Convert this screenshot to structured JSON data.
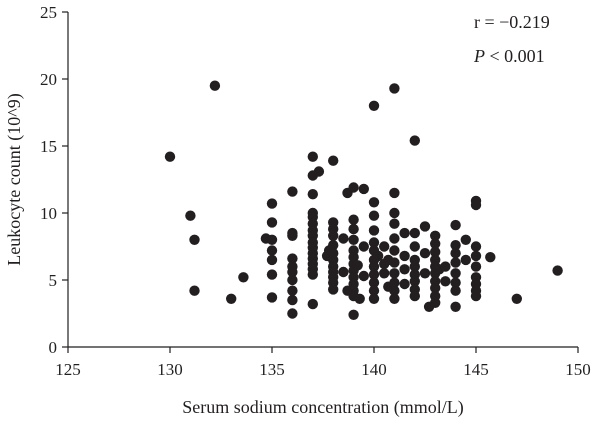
{
  "chart_data": {
    "type": "scatter",
    "title": "",
    "xlabel": "Serum sodium concentration (mmol/L)",
    "ylabel": "Leukocyte count (10^9)",
    "xlim": [
      125,
      150
    ],
    "ylim": [
      0,
      25
    ],
    "xticks": [
      "125",
      "130",
      "135",
      "140",
      "145",
      "150"
    ],
    "yticks": [
      "0",
      "5",
      "10",
      "15",
      "20",
      "25"
    ],
    "annotations": {
      "r": "r = −0.219",
      "p_italic": "P",
      "p_rest": " < 0.001"
    },
    "grid": false,
    "point_color": "#231f20",
    "points": [
      [
        130,
        14.2
      ],
      [
        131,
        9.8
      ],
      [
        131.2,
        8
      ],
      [
        131.2,
        4.2
      ],
      [
        132.2,
        19.5
      ],
      [
        133,
        3.6
      ],
      [
        133.6,
        5.2
      ],
      [
        134.7,
        8.1
      ],
      [
        135,
        10.7
      ],
      [
        135,
        9.3
      ],
      [
        135,
        8
      ],
      [
        135,
        7.2
      ],
      [
        135,
        6.5
      ],
      [
        135,
        5.4
      ],
      [
        135,
        3.7
      ],
      [
        136,
        11.6
      ],
      [
        136,
        8.5
      ],
      [
        136,
        8.3
      ],
      [
        136,
        6.6
      ],
      [
        136,
        6
      ],
      [
        136,
        5.6
      ],
      [
        136,
        5
      ],
      [
        136,
        4.2
      ],
      [
        136,
        3.5
      ],
      [
        136,
        2.5
      ],
      [
        137,
        14.2
      ],
      [
        137,
        12.8
      ],
      [
        137,
        11.4
      ],
      [
        137,
        10
      ],
      [
        137,
        9.7
      ],
      [
        137,
        9.2
      ],
      [
        137,
        8.7
      ],
      [
        137,
        8.3
      ],
      [
        137,
        7.8
      ],
      [
        137,
        7.4
      ],
      [
        137,
        7
      ],
      [
        137,
        6.6
      ],
      [
        137,
        6.2
      ],
      [
        137,
        5.8
      ],
      [
        137,
        5.4
      ],
      [
        137,
        3.2
      ],
      [
        137.3,
        13.1
      ],
      [
        137.7,
        6.8
      ],
      [
        137.8,
        7.2
      ],
      [
        138,
        13.9
      ],
      [
        138,
        9.3
      ],
      [
        138,
        8.8
      ],
      [
        138,
        8.3
      ],
      [
        138,
        7.6
      ],
      [
        138,
        7
      ],
      [
        138,
        6.5
      ],
      [
        138,
        6
      ],
      [
        138,
        5.6
      ],
      [
        138,
        5.2
      ],
      [
        138,
        4.8
      ],
      [
        138,
        4.3
      ],
      [
        138.5,
        8.1
      ],
      [
        138.5,
        5.6
      ],
      [
        138.7,
        11.5
      ],
      [
        138.7,
        4.2
      ],
      [
        139,
        11.9
      ],
      [
        139,
        9.5
      ],
      [
        139,
        8.8
      ],
      [
        139,
        8
      ],
      [
        139,
        7.2
      ],
      [
        139,
        6.7
      ],
      [
        139,
        6.2
      ],
      [
        139,
        5.7
      ],
      [
        139,
        5.2
      ],
      [
        139,
        4.7
      ],
      [
        139,
        4.2
      ],
      [
        139,
        3.8
      ],
      [
        139,
        2.4
      ],
      [
        139.2,
        6.1
      ],
      [
        139.3,
        3.6
      ],
      [
        139.5,
        11.8
      ],
      [
        139.5,
        7.5
      ],
      [
        139.5,
        5.3
      ],
      [
        140,
        18
      ],
      [
        140,
        10.8
      ],
      [
        140,
        9.8
      ],
      [
        140,
        8.7
      ],
      [
        140,
        7.8
      ],
      [
        140,
        7.2
      ],
      [
        140,
        6.5
      ],
      [
        140,
        6
      ],
      [
        140,
        5.4
      ],
      [
        140,
        4.8
      ],
      [
        140,
        4.2
      ],
      [
        140,
        3.6
      ],
      [
        140.2,
        6.8
      ],
      [
        140.5,
        7.5
      ],
      [
        140.5,
        6.2
      ],
      [
        140.5,
        5.5
      ],
      [
        140.7,
        4.5
      ],
      [
        140.7,
        6.5
      ],
      [
        141,
        19.3
      ],
      [
        141,
        11.5
      ],
      [
        141,
        10
      ],
      [
        141,
        9.2
      ],
      [
        141,
        8.1
      ],
      [
        141,
        7.2
      ],
      [
        141,
        6.3
      ],
      [
        141,
        5.5
      ],
      [
        141,
        4.8
      ],
      [
        141,
        4.2
      ],
      [
        141,
        3.6
      ],
      [
        141.5,
        8.5
      ],
      [
        141.5,
        6.8
      ],
      [
        141.5,
        5.8
      ],
      [
        141.5,
        4.7
      ],
      [
        142,
        15.4
      ],
      [
        142,
        8.5
      ],
      [
        142,
        7.5
      ],
      [
        142,
        6.5
      ],
      [
        142,
        6
      ],
      [
        142,
        5.4
      ],
      [
        142,
        4.9
      ],
      [
        142,
        4.3
      ],
      [
        142,
        3.8
      ],
      [
        142.5,
        9
      ],
      [
        142.5,
        7
      ],
      [
        142.5,
        5.5
      ],
      [
        142.7,
        3
      ],
      [
        143,
        8.3
      ],
      [
        143,
        7.7
      ],
      [
        143,
        7.1
      ],
      [
        143,
        6.5
      ],
      [
        143,
        6
      ],
      [
        143,
        5.5
      ],
      [
        143,
        4.9
      ],
      [
        143,
        4.4
      ],
      [
        143,
        3.8
      ],
      [
        143,
        3.3
      ],
      [
        143.2,
        5.8
      ],
      [
        143.5,
        6
      ],
      [
        143.5,
        4.9
      ],
      [
        144,
        9.1
      ],
      [
        144,
        7.6
      ],
      [
        144,
        7
      ],
      [
        144,
        6.3
      ],
      [
        144,
        5.5
      ],
      [
        144,
        4.8
      ],
      [
        144,
        4.2
      ],
      [
        144,
        3
      ],
      [
        144.5,
        8
      ],
      [
        144.5,
        6.5
      ],
      [
        145,
        10.9
      ],
      [
        145,
        10.6
      ],
      [
        145,
        7.5
      ],
      [
        145,
        6.8
      ],
      [
        145,
        6
      ],
      [
        145,
        5.2
      ],
      [
        145,
        4.7
      ],
      [
        145,
        4.2
      ],
      [
        145,
        3.8
      ],
      [
        145.7,
        6.7
      ],
      [
        147,
        3.6
      ],
      [
        149,
        5.7
      ]
    ]
  }
}
